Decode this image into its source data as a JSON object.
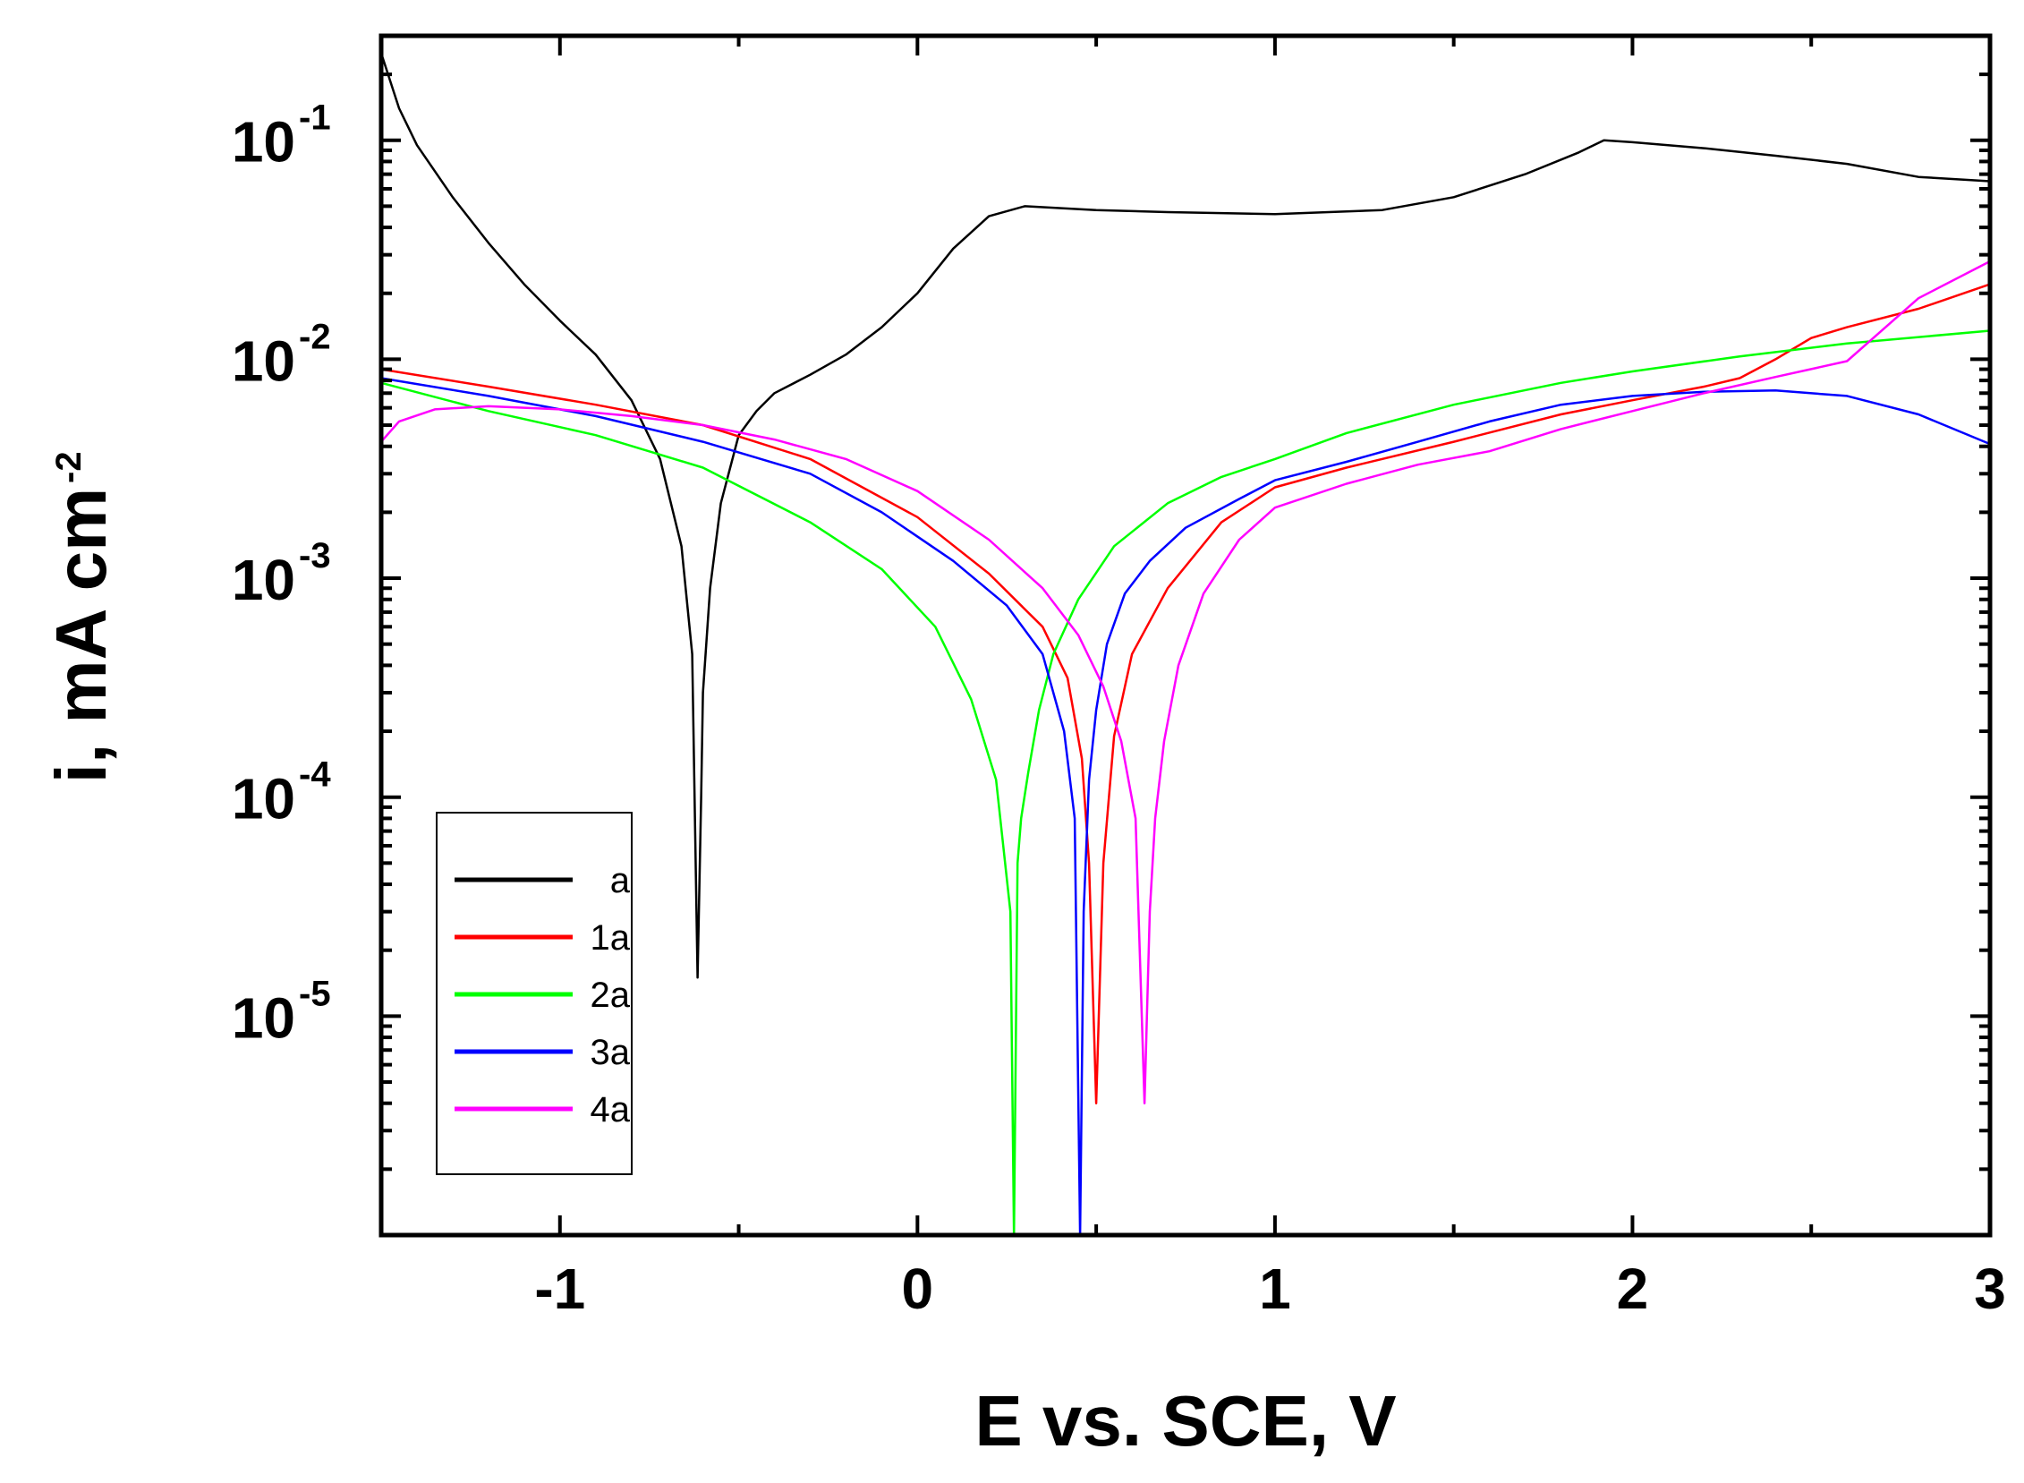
{
  "chart_data": {
    "type": "line",
    "title": "",
    "xlabel": "E vs. SCE, V",
    "ylabel": "i, mA cm",
    "ylabel_superscript": "-2",
    "xscale": "linear",
    "yscale": "log",
    "xlim": [
      -1.5,
      3.0
    ],
    "ylim": [
      1e-06,
      0.3
    ],
    "x_ticks": [
      {
        "value": -1,
        "label": "-1"
      },
      {
        "value": 0,
        "label": "0"
      },
      {
        "value": 1,
        "label": "1"
      },
      {
        "value": 2,
        "label": "2"
      },
      {
        "value": 3,
        "label": "3"
      }
    ],
    "y_ticks": [
      {
        "value": 0.1,
        "base": "10",
        "exp": "-1"
      },
      {
        "value": 0.01,
        "base": "10",
        "exp": "-2"
      },
      {
        "value": 0.001,
        "base": "10",
        "exp": "-3"
      },
      {
        "value": 0.0001,
        "base": "10",
        "exp": "-4"
      },
      {
        "value": 1e-05,
        "base": "10",
        "exp": "-5"
      }
    ],
    "legend_position": "bottom-left",
    "series": [
      {
        "name": "a",
        "color": "#000000",
        "x": [
          -1.5,
          -1.45,
          -1.4,
          -1.3,
          -1.2,
          -1.1,
          -1.0,
          -0.9,
          -0.8,
          -0.72,
          -0.66,
          -0.63,
          -0.615,
          -0.605,
          -0.6,
          -0.58,
          -0.55,
          -0.5,
          -0.45,
          -0.4,
          -0.3,
          -0.2,
          -0.1,
          0.0,
          0.1,
          0.2,
          0.3,
          0.5,
          0.7,
          1.0,
          1.3,
          1.5,
          1.7,
          1.85,
          1.92,
          2.0,
          2.2,
          2.4,
          2.6,
          2.8,
          3.0
        ],
        "y": [
          0.25,
          0.14,
          0.095,
          0.055,
          0.034,
          0.022,
          0.015,
          0.0105,
          0.0065,
          0.0035,
          0.0014,
          0.00045,
          1.5e-05,
          0.0001,
          0.0003,
          0.0009,
          0.0022,
          0.0045,
          0.0058,
          0.007,
          0.0085,
          0.0105,
          0.014,
          0.02,
          0.032,
          0.045,
          0.05,
          0.048,
          0.047,
          0.046,
          0.048,
          0.055,
          0.07,
          0.088,
          0.1,
          0.098,
          0.092,
          0.085,
          0.078,
          0.068,
          0.065
        ]
      },
      {
        "name": "1a",
        "color": "#ff0000",
        "x": [
          -1.5,
          -1.2,
          -0.9,
          -0.6,
          -0.3,
          0.0,
          0.2,
          0.35,
          0.42,
          0.46,
          0.48,
          0.5,
          0.52,
          0.55,
          0.6,
          0.7,
          0.85,
          1.0,
          1.2,
          1.5,
          1.8,
          2.0,
          2.2,
          2.3,
          2.4,
          2.5,
          2.6,
          2.8,
          3.0
        ],
        "y": [
          0.009,
          0.0075,
          0.0062,
          0.005,
          0.0035,
          0.0019,
          0.00105,
          0.0006,
          0.00035,
          0.00015,
          5e-05,
          4e-06,
          5e-05,
          0.00019,
          0.00045,
          0.0009,
          0.0018,
          0.0026,
          0.0032,
          0.0042,
          0.0056,
          0.0065,
          0.0075,
          0.0082,
          0.01,
          0.0125,
          0.014,
          0.017,
          0.022
        ]
      },
      {
        "name": "2a",
        "color": "#00ff00",
        "x": [
          -1.5,
          -1.2,
          -0.9,
          -0.6,
          -0.3,
          -0.1,
          0.05,
          0.15,
          0.22,
          0.26,
          0.27,
          0.28,
          0.29,
          0.31,
          0.34,
          0.38,
          0.45,
          0.55,
          0.7,
          0.85,
          1.0,
          1.2,
          1.5,
          1.8,
          2.0,
          2.3,
          2.6,
          3.0
        ],
        "y": [
          0.0078,
          0.0058,
          0.0045,
          0.0032,
          0.0018,
          0.0011,
          0.0006,
          0.00028,
          0.00012,
          3e-05,
          1e-06,
          5e-05,
          8e-05,
          0.00013,
          0.00025,
          0.00045,
          0.0008,
          0.0014,
          0.0022,
          0.0029,
          0.0035,
          0.0046,
          0.0062,
          0.0078,
          0.0088,
          0.0103,
          0.0118,
          0.0135
        ]
      },
      {
        "name": "3a",
        "color": "#0000ff",
        "x": [
          -1.5,
          -1.2,
          -0.9,
          -0.6,
          -0.3,
          -0.1,
          0.1,
          0.25,
          0.35,
          0.41,
          0.44,
          0.455,
          0.465,
          0.48,
          0.5,
          0.53,
          0.58,
          0.65,
          0.75,
          0.9,
          1.0,
          1.2,
          1.4,
          1.6,
          1.8,
          2.0,
          2.2,
          2.4,
          2.6,
          2.8,
          3.0
        ],
        "y": [
          0.0082,
          0.0068,
          0.0055,
          0.0042,
          0.003,
          0.002,
          0.0012,
          0.00075,
          0.00045,
          0.0002,
          8e-05,
          1e-06,
          3e-05,
          0.00012,
          0.00025,
          0.0005,
          0.00085,
          0.0012,
          0.0017,
          0.0023,
          0.0028,
          0.0034,
          0.0042,
          0.0052,
          0.0062,
          0.0068,
          0.0071,
          0.0072,
          0.0068,
          0.0056,
          0.0041
        ]
      },
      {
        "name": "4a",
        "color": "#ff00ff",
        "x": [
          -1.5,
          -1.45,
          -1.35,
          -1.2,
          -1.0,
          -0.8,
          -0.6,
          -0.4,
          -0.2,
          0.0,
          0.2,
          0.35,
          0.45,
          0.52,
          0.57,
          0.61,
          0.635,
          0.65,
          0.665,
          0.69,
          0.73,
          0.8,
          0.9,
          1.0,
          1.2,
          1.4,
          1.6,
          1.8,
          2.0,
          2.2,
          2.4,
          2.6,
          2.8,
          3.0
        ],
        "y": [
          0.0042,
          0.0052,
          0.0059,
          0.0061,
          0.0059,
          0.0055,
          0.005,
          0.0043,
          0.0035,
          0.0025,
          0.0015,
          0.0009,
          0.00055,
          0.00032,
          0.00018,
          8e-05,
          4e-06,
          3e-05,
          8e-05,
          0.00018,
          0.0004,
          0.00085,
          0.0015,
          0.0021,
          0.0027,
          0.0033,
          0.0038,
          0.0048,
          0.0058,
          0.007,
          0.0083,
          0.0098,
          0.019,
          0.028
        ]
      }
    ]
  }
}
